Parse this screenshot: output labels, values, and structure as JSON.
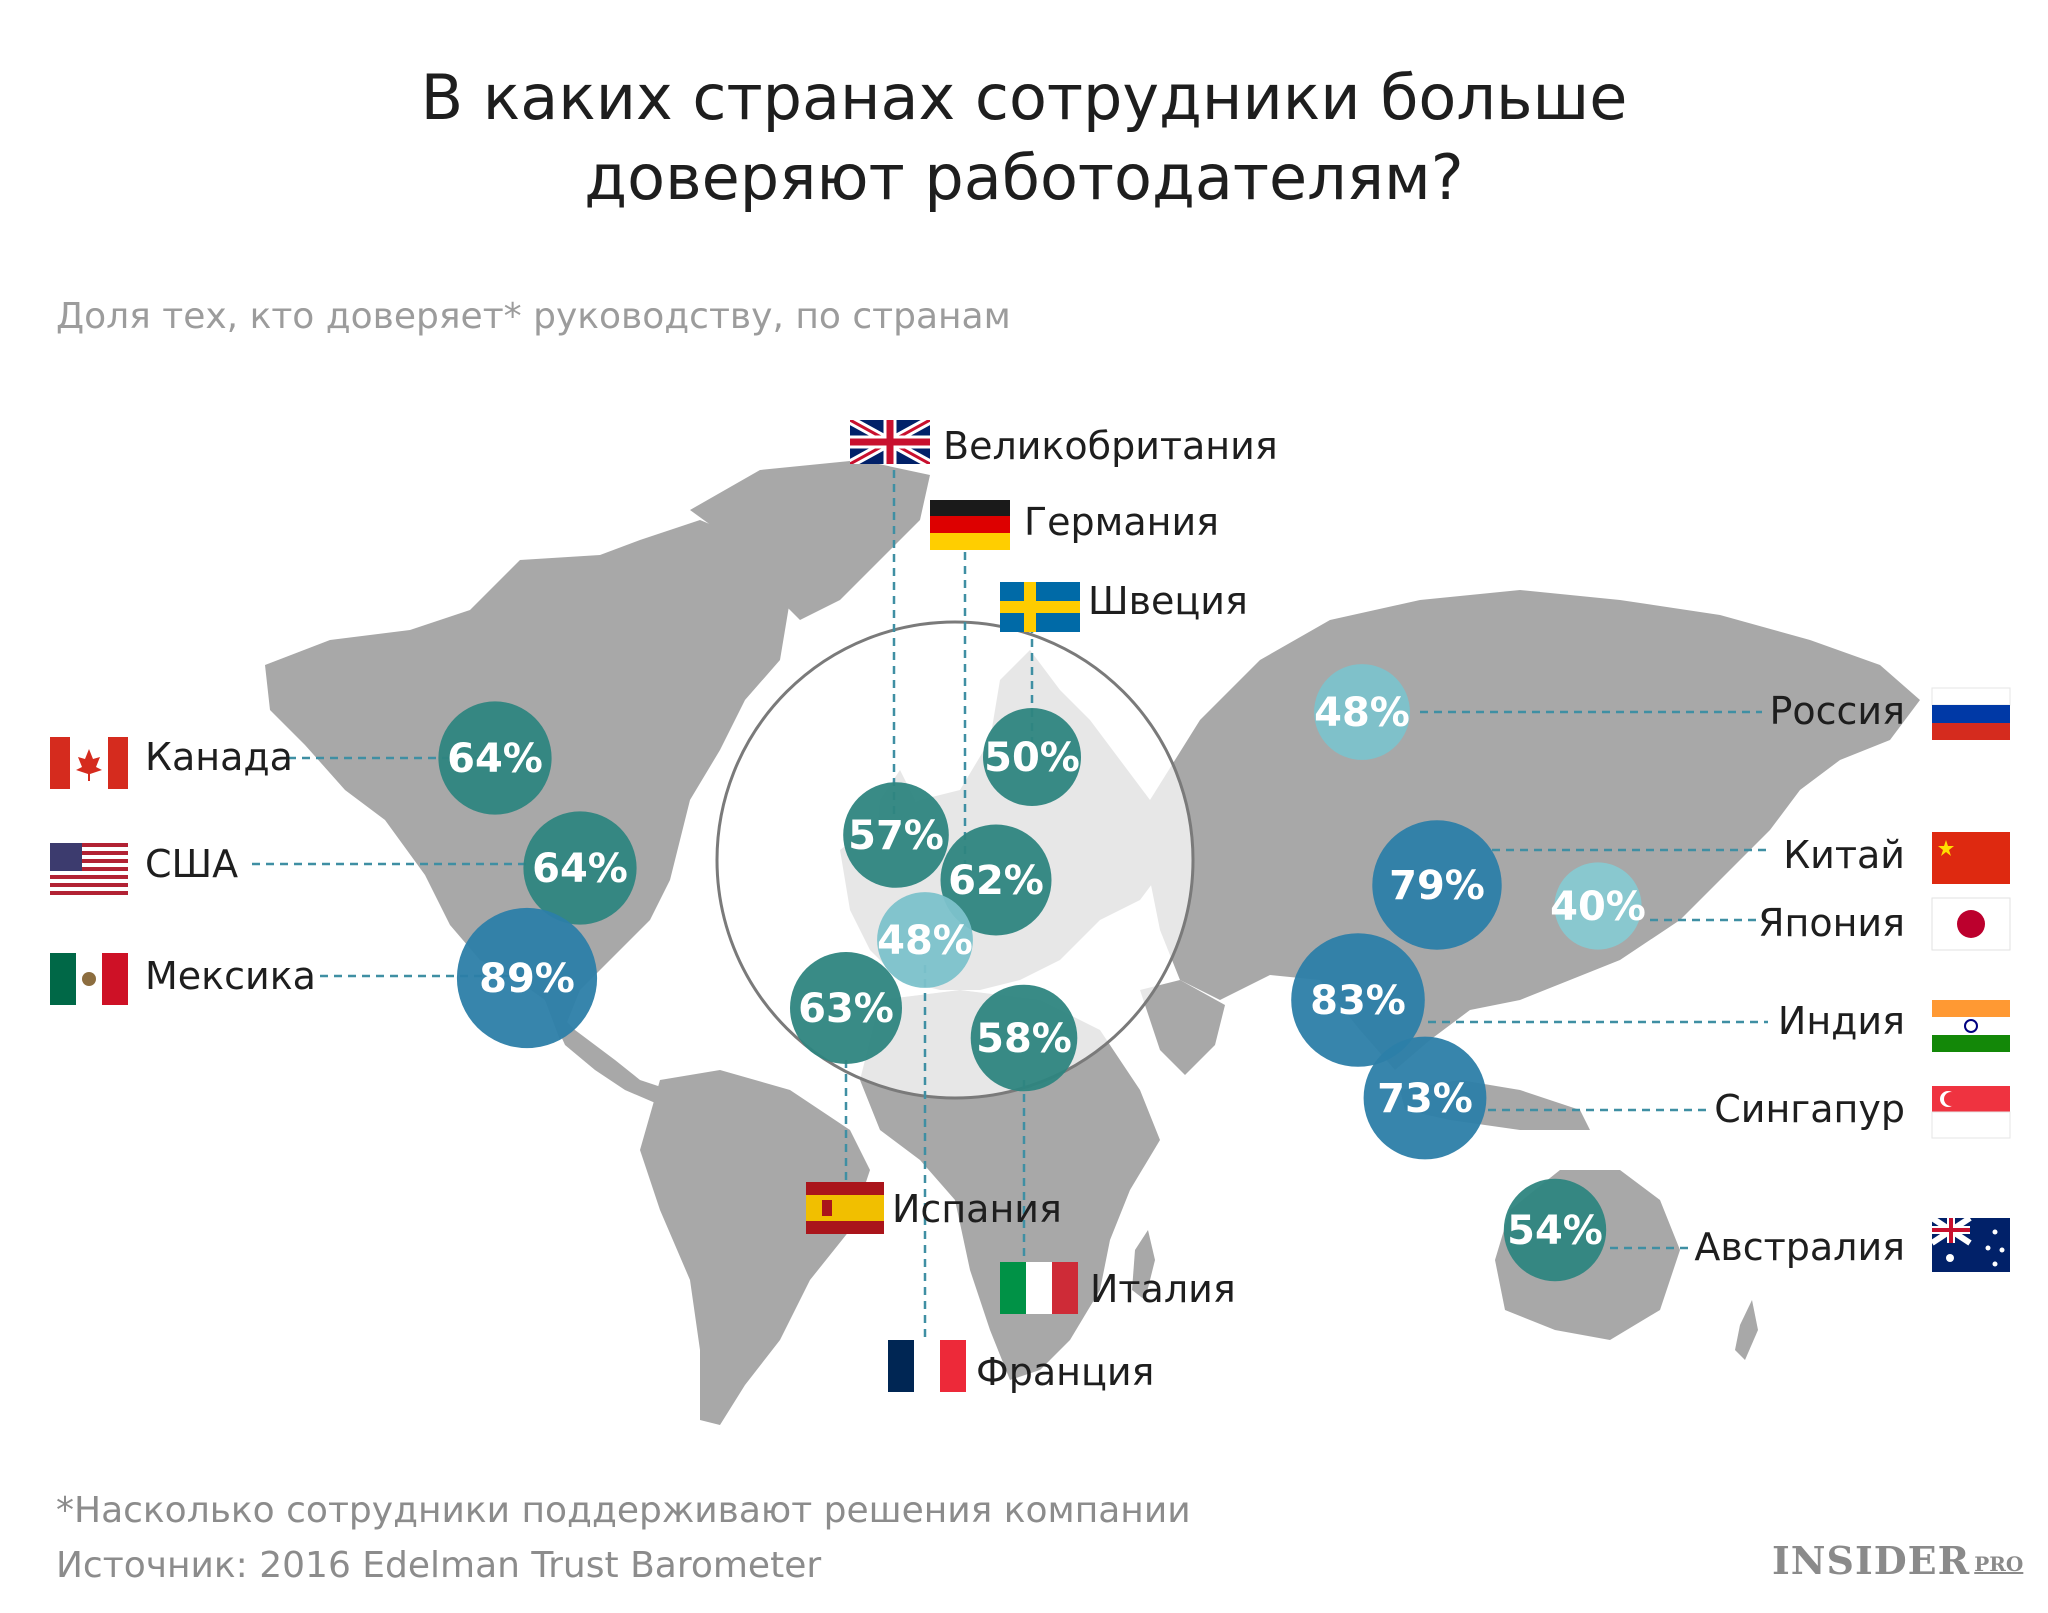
{
  "title_line1": "В каких странах сотрудники больше",
  "title_line2": "доверяют работодателям?",
  "subtitle": "Доля тех, кто доверяет* руководству, по странам",
  "footnote": "*Насколько сотрудники поддерживают решения компании",
  "source": "Источник: 2016 Edelman Trust Barometer",
  "logo": {
    "main": "INSIDER",
    "sub": "PRO"
  },
  "colors": {
    "map_land": "#a8a8a8",
    "leader_line": "#3f8fa3",
    "bubble_text": "#ffffff"
  },
  "countries": [
    {
      "id": "canada",
      "label": "Канада",
      "value": "64%",
      "percent": 64,
      "color": "#2e8580",
      "flag": "canada-flag"
    },
    {
      "id": "usa",
      "label": "США",
      "value": "64%",
      "percent": 64,
      "color": "#2e8580",
      "flag": "usa-flag"
    },
    {
      "id": "mexico",
      "label": "Мексика",
      "value": "89%",
      "percent": 89,
      "color": "#2c7ea8",
      "flag": "mexico-flag"
    },
    {
      "id": "uk",
      "label": "Великобритания",
      "value": "57%",
      "percent": 57,
      "color": "#2e8580",
      "flag": "uk-flag"
    },
    {
      "id": "germany",
      "label": "Германия",
      "value": "62%",
      "percent": 62,
      "color": "#2e8580",
      "flag": "germany-flag"
    },
    {
      "id": "sweden",
      "label": "Швеция",
      "value": "50%",
      "percent": 50,
      "color": "#2e8580",
      "flag": "sweden-flag"
    },
    {
      "id": "france",
      "label": "Франция",
      "value": "48%",
      "percent": 48,
      "color": "#7cc2cb",
      "flag": "france-flag"
    },
    {
      "id": "spain",
      "label": "Испания",
      "value": "63%",
      "percent": 63,
      "color": "#2e8580",
      "flag": "spain-flag"
    },
    {
      "id": "italy",
      "label": "Италия",
      "value": "58%",
      "percent": 58,
      "color": "#2e8580",
      "flag": "italy-flag"
    },
    {
      "id": "russia",
      "label": "Россия",
      "value": "48%",
      "percent": 48,
      "color": "#7cc2cb",
      "flag": "russia-flag"
    },
    {
      "id": "china",
      "label": "Китай",
      "value": "79%",
      "percent": 79,
      "color": "#2c7ea8",
      "flag": "china-flag"
    },
    {
      "id": "japan",
      "label": "Япония",
      "value": "40%",
      "percent": 40,
      "color": "#87c9d1",
      "flag": "japan-flag"
    },
    {
      "id": "india",
      "label": "Индия",
      "value": "83%",
      "percent": 83,
      "color": "#2c7ea8",
      "flag": "india-flag"
    },
    {
      "id": "singapore",
      "label": "Сингапур",
      "value": "73%",
      "percent": 73,
      "color": "#2c7ea8",
      "flag": "singapore-flag"
    },
    {
      "id": "australia",
      "label": "Австралия",
      "value": "54%",
      "percent": 54,
      "color": "#2e8580",
      "flag": "australia-flag"
    }
  ]
}
